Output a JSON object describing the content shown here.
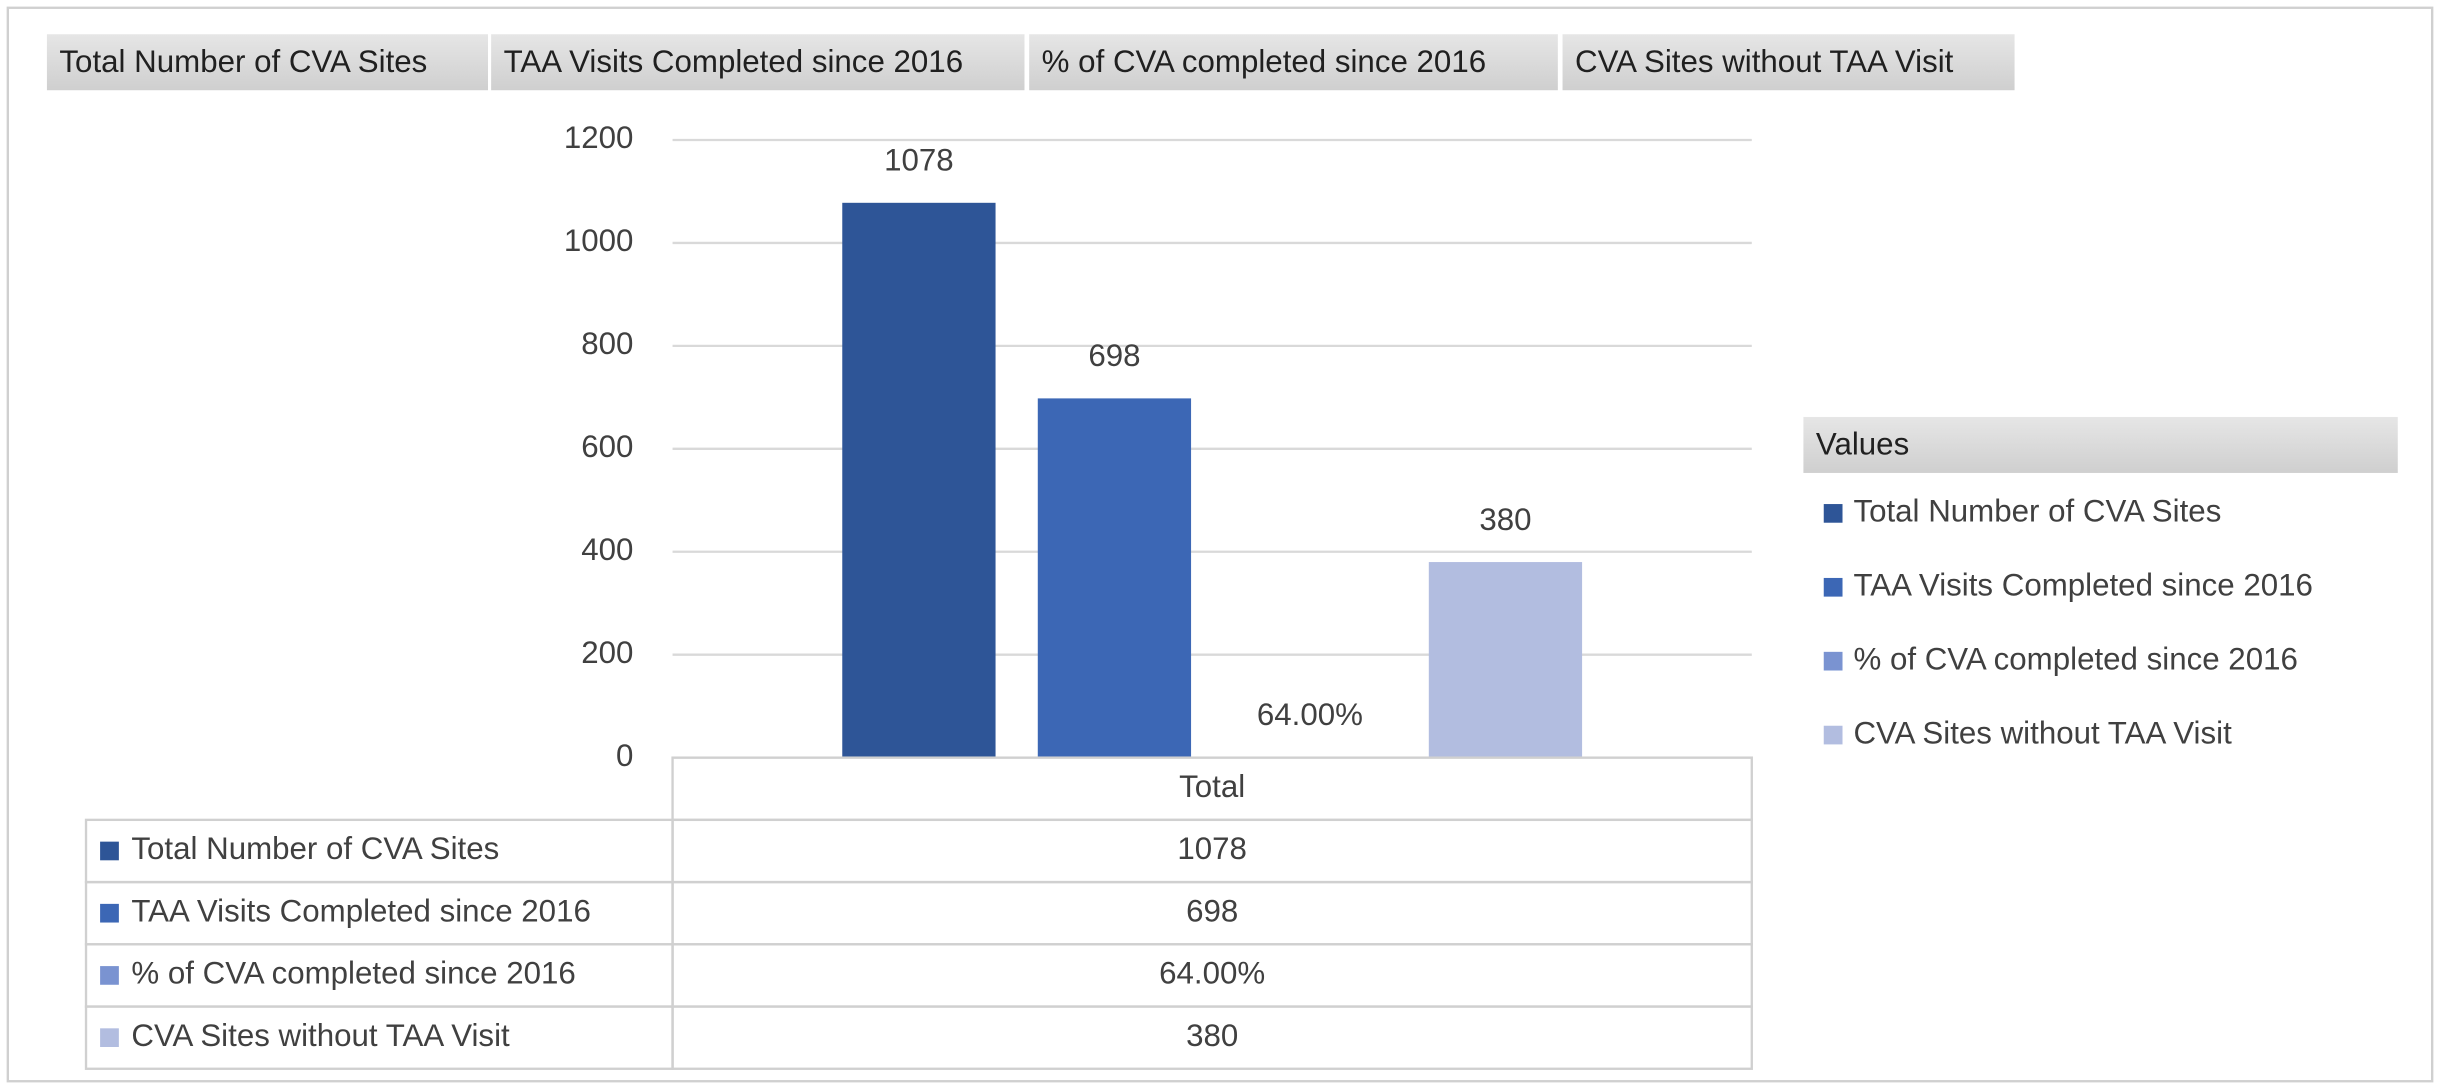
{
  "chart_data": {
    "type": "bar",
    "categories": [
      "Total"
    ],
    "series": [
      {
        "name": "Total Number of CVA Sites",
        "color": "#2e5597",
        "values": [
          1078
        ]
      },
      {
        "name": "TAA Visits Completed since 2016",
        "color": "#3c67b5",
        "values": [
          698
        ]
      },
      {
        "name": "% of CVA completed since 2016",
        "color": "#7a93d1",
        "values": [
          0.64
        ],
        "value_labels": [
          "64.00%"
        ]
      },
      {
        "name": "CVA Sites without TAA Visit",
        "color": "#b2bde0",
        "values": [
          380
        ]
      }
    ],
    "ylim": [
      0,
      1200
    ],
    "yticks": [
      0,
      200,
      400,
      600,
      800,
      1000,
      1200
    ],
    "grid": true,
    "legend_title": "Values",
    "legend": "right",
    "data_table": true
  }
}
